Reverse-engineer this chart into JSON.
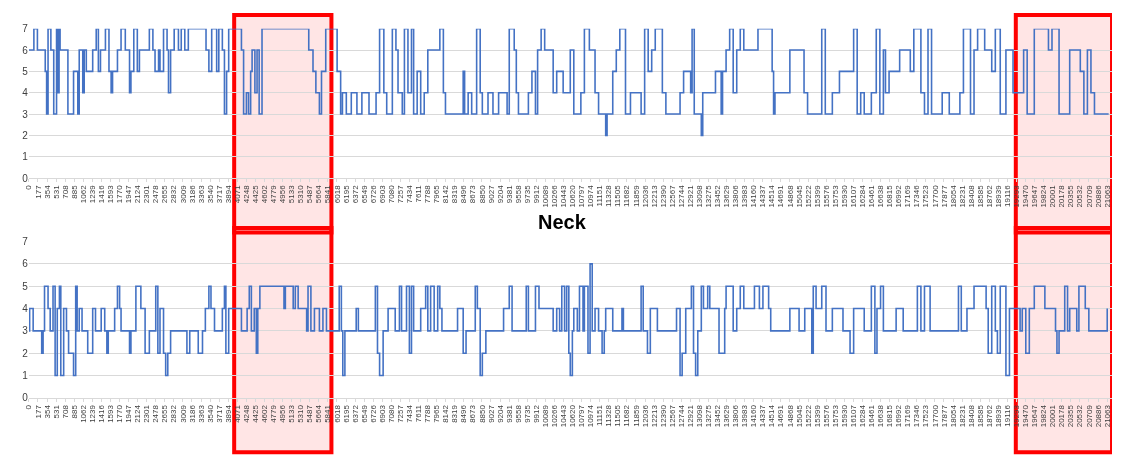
{
  "chart_data": [
    {
      "type": "step",
      "ylim": [
        0,
        7
      ],
      "yticks": [
        0,
        1,
        2,
        3,
        4,
        5,
        6,
        7
      ],
      "xlim": [
        0,
        21160
      ],
      "grid": "y",
      "xticks": [
        0,
        177,
        354,
        531,
        708,
        885,
        1062,
        1239,
        1416,
        1593,
        1770,
        1947,
        2124,
        2301,
        2478,
        2655,
        2832,
        3009,
        3186,
        3363,
        3540,
        3717,
        3894,
        4071,
        4248,
        4425,
        4602,
        4779,
        4956,
        5133,
        5310,
        5487,
        5664,
        5841,
        6018,
        6195,
        6372,
        6549,
        6726,
        6903,
        7080,
        7257,
        7434,
        7611,
        7788,
        7965,
        8142,
        8319,
        8496,
        8673,
        8850,
        9027,
        9204,
        9381,
        9558,
        9735,
        9912,
        10089,
        10266,
        10443,
        10620,
        10797,
        10974,
        11151,
        11328,
        11505,
        11682,
        11859,
        12036,
        12213,
        12390,
        12567,
        12744,
        12921,
        13098,
        13275,
        13452,
        13629,
        13806,
        13983,
        14160,
        14337,
        14514,
        14691,
        14868,
        15045,
        15222,
        15399,
        15576,
        15753,
        15930,
        16107,
        16284,
        16461,
        16638,
        16815,
        16992,
        17169,
        17346,
        17523,
        17700,
        17877,
        18054,
        18231,
        18408,
        18585,
        18762,
        18939,
        19116,
        19293,
        19470,
        19647,
        19824,
        20001,
        20178,
        20355,
        20532,
        20709,
        20886,
        21063
      ],
      "bands": [
        {
          "axis": "x",
          "from": 4010,
          "to": 5910,
          "color": "#ff0000"
        },
        {
          "axis": "x",
          "from": 19280,
          "to": 21160,
          "color": "#ff0000"
        }
      ],
      "series": [
        {
          "color": "#4472c4",
          "x": [
            0,
            97,
            166,
            319,
            346,
            374,
            429,
            485,
            540,
            568,
            589,
            609,
            679,
            762,
            872,
            955,
            983,
            1052,
            1080,
            1121,
            1246,
            1315,
            1357,
            1398,
            1495,
            1564,
            1606,
            1634,
            1730,
            1800,
            1883,
            1966,
            1993,
            2049,
            2118,
            2159,
            2353,
            2422,
            2464,
            2533,
            2561,
            2630,
            2699,
            2727,
            2768,
            2838,
            2921,
            2976,
            3045,
            3114,
            3460,
            3516,
            3571,
            3668,
            3710,
            3779,
            3820,
            3862,
            3903,
            4152,
            4194,
            4249,
            4291,
            4332,
            4360,
            4415,
            4457,
            4498,
            4554,
            5467,
            5550,
            5606,
            5675,
            5716,
            5799,
            6021,
            6090,
            6125,
            6201,
            6298,
            6408,
            6505,
            6644,
            6782,
            6851,
            6934,
            6990,
            7100,
            7170,
            7211,
            7294,
            7336,
            7405,
            7474,
            7516,
            7585,
            7654,
            7723,
            7793,
            8028,
            8097,
            8138,
            8484,
            8512,
            8581,
            8650,
            8747,
            8816,
            8858,
            8969,
            9066,
            9176,
            9342,
            9384,
            9481,
            9522,
            9564,
            9758,
            9827,
            9896,
            9938,
            10007,
            10076,
            10242,
            10311,
            10368,
            10437,
            10576,
            10645,
            10783,
            10852,
            10949,
            11060,
            11129,
            11268,
            11295,
            11406,
            11475,
            11544,
            11655,
            11752,
            11960,
            12029,
            12098,
            12167,
            12236,
            12375,
            12444,
            12721,
            12790,
            12928,
            12956,
            12998,
            13136,
            13164,
            13413,
            13524,
            13551,
            13620,
            13690,
            13759,
            13828,
            13897,
            13966,
            14243,
            14520,
            14548,
            14575,
            14866,
            15143,
            15212,
            15489,
            15558,
            15696,
            15835,
            16112,
            16181,
            16250,
            16319,
            16458,
            16554,
            16624,
            16693,
            16734,
            16804,
            17011,
            17219,
            17288,
            17426,
            17496,
            17565,
            17634,
            17842,
            17980,
            18188,
            18257,
            18395,
            18464,
            18534,
            18672,
            18810,
            18880,
            18976,
            19087,
            19226,
            19433,
            19502,
            19641,
            19918,
            19987,
            20125,
            20333,
            20540,
            20610,
            20679,
            20748,
            20817,
            21094
          ],
          "values": [
            6,
            7,
            6,
            5,
            3,
            7,
            6,
            3,
            7,
            4,
            7,
            6,
            6,
            3,
            5,
            3,
            6,
            4,
            6,
            5,
            6,
            7,
            5,
            6,
            7,
            5,
            4,
            5,
            6,
            7,
            6,
            4,
            5,
            7,
            5,
            6,
            7,
            6,
            5,
            6,
            5,
            7,
            6,
            4,
            6,
            7,
            6,
            7,
            6,
            7,
            6,
            5,
            7,
            5,
            7,
            6,
            3,
            5,
            7,
            6,
            3,
            4,
            3,
            5,
            6,
            4,
            6,
            3,
            7,
            6,
            5,
            4,
            3,
            5,
            7,
            5,
            3,
            4,
            3,
            4,
            3,
            4,
            3,
            4,
            7,
            4,
            3,
            7,
            6,
            4,
            3,
            7,
            4,
            7,
            3,
            5,
            3,
            4,
            6,
            7,
            4,
            3,
            5,
            3,
            4,
            3,
            7,
            4,
            3,
            4,
            3,
            4,
            3,
            7,
            6,
            4,
            3,
            4,
            5,
            3,
            6,
            7,
            6,
            4,
            5,
            5,
            4,
            6,
            3,
            4,
            7,
            6,
            4,
            3,
            2,
            3,
            5,
            6,
            7,
            3,
            4,
            3,
            7,
            5,
            6,
            7,
            4,
            3,
            4,
            5,
            4,
            7,
            3,
            2,
            4,
            5,
            3,
            5,
            6,
            7,
            4,
            6,
            7,
            6,
            7,
            5,
            3,
            4,
            6,
            4,
            3,
            7,
            3,
            4,
            5,
            7,
            3,
            4,
            3,
            4,
            7,
            3,
            6,
            4,
            5,
            6,
            5,
            7,
            4,
            3,
            7,
            3,
            4,
            3,
            4,
            7,
            3,
            6,
            7,
            6,
            5,
            7,
            3,
            6,
            4,
            6,
            3,
            7,
            6,
            7,
            3,
            6,
            5,
            3,
            6,
            4,
            3,
            3
          ]
        }
      ]
    },
    {
      "type": "step",
      "title": "Neck",
      "ylim": [
        0,
        7
      ],
      "yticks": [
        0,
        1,
        2,
        3,
        4,
        5,
        6,
        7
      ],
      "xlim": [
        0,
        21160
      ],
      "grid": "y",
      "xticks": [
        0,
        177,
        354,
        531,
        708,
        885,
        1062,
        1239,
        1416,
        1593,
        1770,
        1947,
        2124,
        2301,
        2478,
        2655,
        2832,
        3009,
        3186,
        3363,
        3540,
        3717,
        3894,
        4071,
        4248,
        4425,
        4602,
        4779,
        4956,
        5133,
        5310,
        5487,
        5664,
        5841,
        6018,
        6195,
        6372,
        6549,
        6726,
        6903,
        7080,
        7257,
        7434,
        7611,
        7788,
        7965,
        8142,
        8319,
        8496,
        8673,
        8850,
        9027,
        9204,
        9381,
        9558,
        9735,
        9912,
        10089,
        10266,
        10443,
        10620,
        10797,
        10974,
        11151,
        11328,
        11505,
        11682,
        11859,
        12036,
        12213,
        12390,
        12567,
        12744,
        12921,
        13098,
        13275,
        13452,
        13629,
        13806,
        13983,
        14160,
        14337,
        14514,
        14691,
        14868,
        15045,
        15222,
        15399,
        15576,
        15753,
        15930,
        16107,
        16284,
        16461,
        16638,
        16815,
        16992,
        17169,
        17346,
        17523,
        17700,
        17877,
        18054,
        18231,
        18408,
        18585,
        18762,
        18939,
        19116,
        19293,
        19470,
        19647,
        19824,
        20001,
        20178,
        20355,
        20532,
        20709,
        20886,
        21063
      ],
      "bands": [
        {
          "axis": "x",
          "from": 4010,
          "to": 5910,
          "color": "#ff0000"
        },
        {
          "axis": "x",
          "from": 19280,
          "to": 21160,
          "color": "#ff0000"
        }
      ],
      "series": [
        {
          "color": "#4472c4",
          "x": [
            0,
            14,
            83,
            250,
            277,
            305,
            374,
            416,
            471,
            512,
            554,
            596,
            623,
            679,
            734,
            775,
            872,
            914,
            942,
            983,
            1038,
            1149,
            1246,
            1301,
            1412,
            1481,
            1523,
            1550,
            1675,
            1730,
            1772,
            1800,
            1966,
            1993,
            2090,
            2187,
            2270,
            2353,
            2478,
            2519,
            2561,
            2630,
            2672,
            2713,
            2768,
            3087,
            3142,
            3308,
            3391,
            3447,
            3516,
            3557,
            3626,
            3779,
            3820,
            3848,
            3903,
            4152,
            4263,
            4305,
            4346,
            4402,
            4443,
            4471,
            4512,
            4983,
            5010,
            5163,
            5204,
            5260,
            5426,
            5453,
            5509,
            5578,
            5675,
            5744,
            5813,
            6062,
            6104,
            6132,
            6173,
            6394,
            6436,
            6768,
            6810,
            6851,
            6920,
            7017,
            7156,
            7239,
            7280,
            7377,
            7433,
            7474,
            7516,
            7654,
            7751,
            7793,
            7848,
            7917,
            7986,
            8028,
            8069,
            8374,
            8484,
            8540,
            8720,
            8761,
            8816,
            8858,
            8927,
            9273,
            9384,
            9439,
            9716,
            9758,
            9896,
            9965,
            10242,
            10311,
            10368,
            10410,
            10465,
            10506,
            10548,
            10576,
            10617,
            10645,
            10714,
            10756,
            10825,
            10852,
            10922,
            10963,
            11005,
            11060,
            11129,
            11198,
            11240,
            11268,
            11406,
            11586,
            11614,
            11960,
            12001,
            12084,
            12140,
            12278,
            12652,
            12721,
            12762,
            12832,
            12942,
            12984,
            13025,
            13067,
            13136,
            13178,
            13261,
            13302,
            13482,
            13593,
            13620,
            13759,
            13828,
            13897,
            13966,
            14174,
            14271,
            14340,
            14451,
            14492,
            14866,
            15046,
            15157,
            15295,
            15323,
            15378,
            15489,
            15572,
            15696,
            15904,
            16042,
            16112,
            16319,
            16458,
            16527,
            16568,
            16638,
            16693,
            16942,
            17080,
            17357,
            17426,
            17496,
            17606,
            18160,
            18215,
            18326,
            18464,
            18700,
            18741,
            18810,
            18880,
            18921,
            18976,
            19087,
            19156,
            19364,
            19406,
            19475,
            19544,
            19641,
            19848,
            20056,
            20084,
            20125,
            20236,
            20291,
            20333,
            20471,
            20513,
            20637,
            20707,
            21025,
            21066
          ],
          "values": [
            3,
            4,
            3,
            2,
            3,
            5,
            4,
            3,
            5,
            1,
            4,
            5,
            1,
            4,
            3,
            2,
            1,
            5,
            3,
            4,
            3,
            2,
            4,
            3,
            4,
            3,
            2,
            3,
            4,
            5,
            4,
            3,
            2,
            3,
            5,
            4,
            2,
            3,
            5,
            2,
            4,
            2,
            1,
            2,
            3,
            2,
            3,
            2,
            3,
            4,
            5,
            4,
            3,
            4,
            5,
            2,
            4,
            3,
            4,
            5,
            3,
            4,
            2,
            4,
            5,
            4,
            5,
            4,
            5,
            4,
            3,
            5,
            3,
            4,
            3,
            4,
            3,
            5,
            3,
            1,
            3,
            4,
            3,
            5,
            2,
            1,
            3,
            4,
            3,
            5,
            3,
            5,
            2,
            5,
            3,
            4,
            5,
            3,
            5,
            3,
            5,
            4,
            3,
            4,
            2,
            3,
            5,
            4,
            1,
            2,
            3,
            4,
            5,
            3,
            5,
            3,
            5,
            4,
            3,
            4,
            3,
            5,
            3,
            5,
            2,
            1,
            3,
            4,
            3,
            5,
            3,
            5,
            2,
            6,
            3,
            4,
            3,
            2,
            3,
            4,
            3,
            4,
            3,
            5,
            3,
            2,
            4,
            3,
            4,
            1,
            2,
            4,
            5,
            2,
            1,
            3,
            5,
            4,
            5,
            4,
            2,
            4,
            5,
            3,
            4,
            5,
            4,
            5,
            4,
            5,
            4,
            3,
            4,
            3,
            4,
            2,
            5,
            4,
            5,
            3,
            4,
            3,
            2,
            4,
            3,
            5,
            2,
            4,
            5,
            3,
            4,
            3,
            5,
            3,
            5,
            3,
            5,
            3,
            4,
            5,
            4,
            2,
            5,
            3,
            2,
            5,
            1,
            4,
            3,
            4,
            2,
            4,
            5,
            4,
            3,
            2,
            3,
            5,
            3,
            4,
            3,
            5,
            4,
            3,
            3,
            4
          ]
        }
      ]
    }
  ]
}
